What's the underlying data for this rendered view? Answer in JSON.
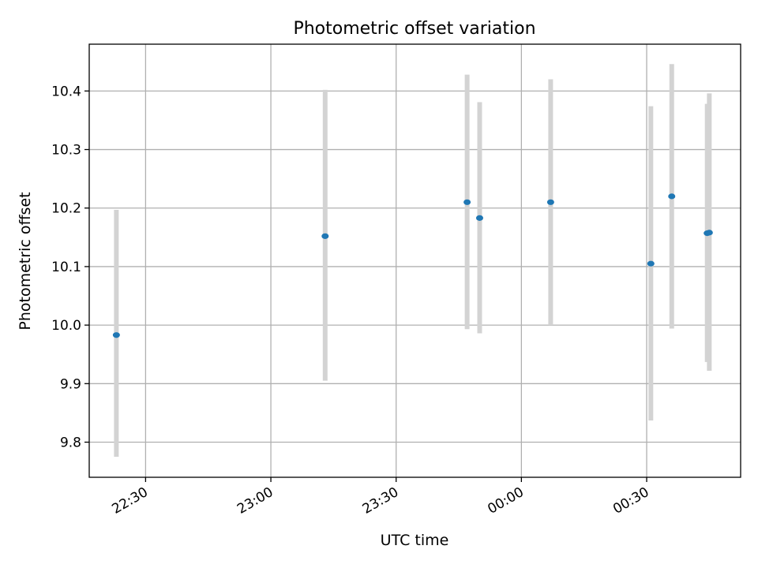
{
  "chart_data": {
    "type": "scatter",
    "title": "Photometric offset variation",
    "xlabel": "UTC time",
    "ylabel": "Photometric offset",
    "x_unit": "time of day (UTC), HH:MM",
    "xlim": [
      "22:16.5",
      "00:52.5"
    ],
    "ylim": [
      9.74,
      10.48
    ],
    "x_ticks": [
      "22:30",
      "23:00",
      "23:30",
      "00:00",
      "00:30"
    ],
    "y_ticks": [
      9.8,
      9.9,
      10.0,
      10.1,
      10.2,
      10.3,
      10.4
    ],
    "x_tick_label_rotation": "30 degrees",
    "grid": true,
    "legend": "none",
    "colors": {
      "marker": "#1f77b4",
      "errorbar": "#d3d3d3",
      "grid": "#b0b0b0"
    },
    "points": [
      {
        "time": "22:23",
        "y": 9.983,
        "ylow": 9.775,
        "yhigh": 10.197
      },
      {
        "time": "23:13",
        "y": 10.152,
        "ylow": 9.905,
        "yhigh": 10.402
      },
      {
        "time": "23:47",
        "y": 10.21,
        "ylow": 9.993,
        "yhigh": 10.428
      },
      {
        "time": "23:50",
        "y": 10.183,
        "ylow": 9.986,
        "yhigh": 10.381
      },
      {
        "time": "00:07",
        "y": 10.21,
        "ylow": 10.0,
        "yhigh": 10.42
      },
      {
        "time": "00:31",
        "y": 10.105,
        "ylow": 9.837,
        "yhigh": 10.374
      },
      {
        "time": "00:36",
        "y": 10.22,
        "ylow": 9.994,
        "yhigh": 10.446
      },
      {
        "time": "00:44.5",
        "y": 10.157,
        "ylow": 9.937,
        "yhigh": 10.378
      },
      {
        "time": "00:45",
        "y": 10.158,
        "ylow": 9.922,
        "yhigh": 10.396
      }
    ]
  }
}
